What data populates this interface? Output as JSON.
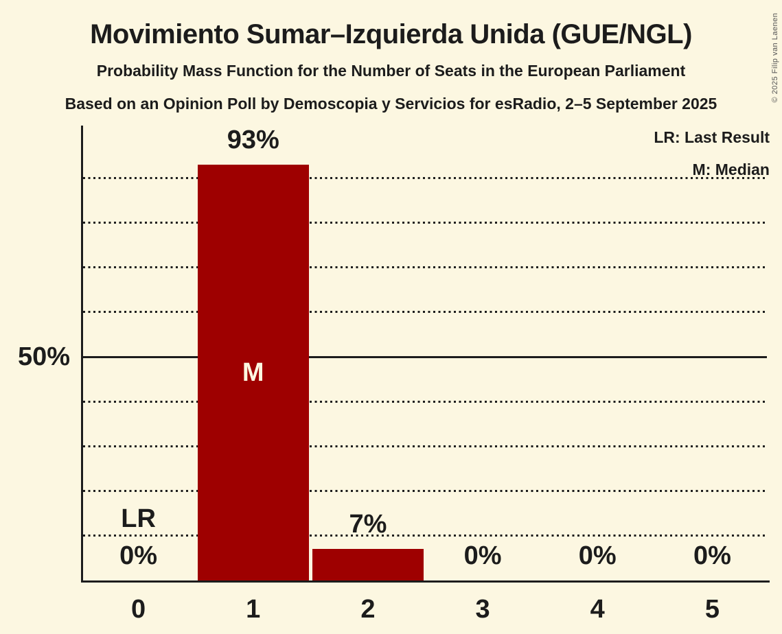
{
  "chart_data": {
    "type": "bar",
    "title": "Movimiento Sumar–Izquierda Unida (GUE/NGL)",
    "subtitle": "Probability Mass Function for the Number of Seats in the European Parliament",
    "source_line": "Based on an Opinion Poll by Demoscopia y Servicios for esRadio, 2–5 September 2025",
    "categories": [
      "0",
      "1",
      "2",
      "3",
      "4",
      "5"
    ],
    "values": [
      0,
      93,
      7,
      0,
      0,
      0
    ],
    "value_labels": [
      "0%",
      "93%",
      "7%",
      "0%",
      "0%",
      "0%"
    ],
    "xlabel": "",
    "ylabel": "",
    "ylim": [
      0,
      102
    ],
    "grid": "horizontal dotted every 10%, solid reference line at 50%",
    "dotted_gridlines_pct": [
      10,
      20,
      30,
      40,
      60,
      70,
      80,
      90
    ],
    "y_reference": {
      "pct": 50,
      "label": "50%"
    },
    "legend_position": "top-right",
    "legend": [
      "LR: Last Result",
      "M: Median"
    ],
    "median": {
      "index": 1,
      "marker": "M"
    },
    "last_result": {
      "index": 0,
      "marker": "LR"
    }
  },
  "copyright": "© 2025 Filip van Laenen",
  "colors": {
    "background": "#FCF7E1",
    "bar": "#9E0000",
    "text": "#1C1C1C",
    "bar_label": "#FCF7E1",
    "copyright": "#555555"
  }
}
